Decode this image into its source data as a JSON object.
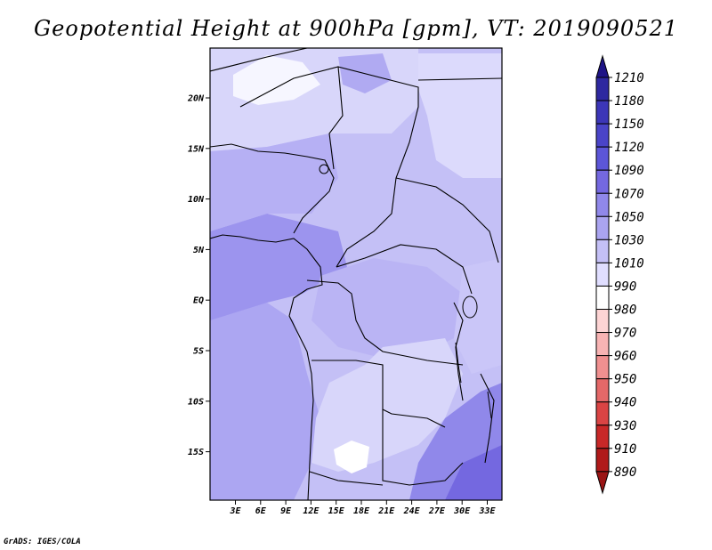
{
  "title": "Geopotential Height at 900hPa [gpm], VT: 2019090521",
  "credit": "GrADS: IGES/COLA",
  "map": {
    "variable": "Geopotential Height",
    "level": "900hPa",
    "units": "gpm",
    "valid_time": "2019090521",
    "region": "Central Africa",
    "lon_labels": [
      "3E",
      "6E",
      "9E",
      "12E",
      "15E",
      "18E",
      "21E",
      "24E",
      "27E",
      "30E",
      "33E"
    ],
    "lat_labels": [
      "20N",
      "15N",
      "10N",
      "5N",
      "EQ",
      "5S",
      "10S",
      "15S"
    ]
  },
  "colorbar": {
    "labels": [
      "1210",
      "1180",
      "1150",
      "1120",
      "1090",
      "1070",
      "1050",
      "1030",
      "1010",
      "990",
      "980",
      "970",
      "960",
      "950",
      "940",
      "930",
      "910",
      "890"
    ],
    "colors": [
      "#1e1486",
      "#2e28a0",
      "#3c36b8",
      "#4a44c8",
      "#5c56d8",
      "#7468e0",
      "#9088ea",
      "#aaa4f0",
      "#c4c0f6",
      "#e0deff",
      "#ffffff",
      "#fdd4d4",
      "#f8b4b4",
      "#f09090",
      "#e46868",
      "#da4444",
      "#c82828",
      "#b01a1a",
      "#9a1414"
    ]
  }
}
